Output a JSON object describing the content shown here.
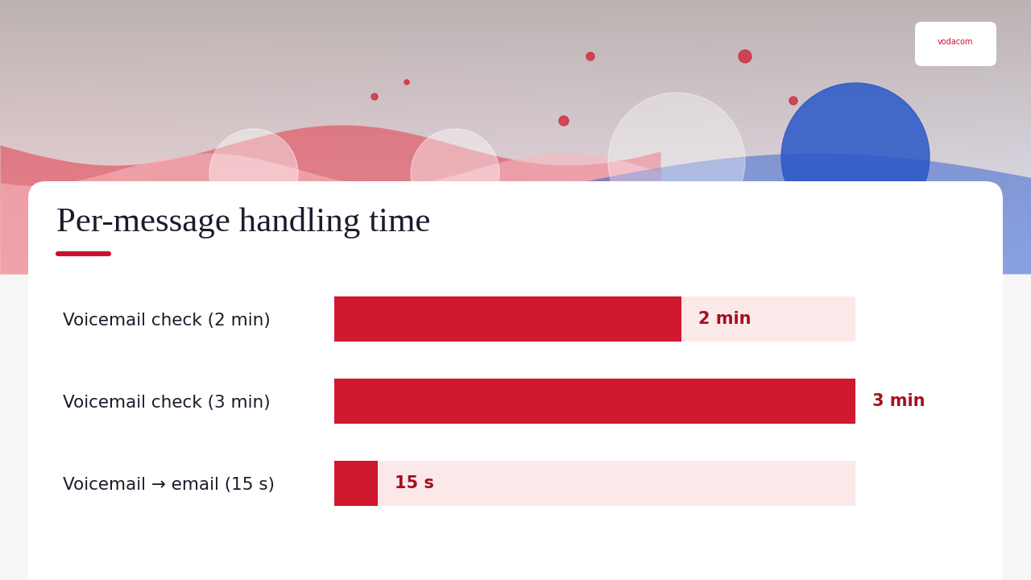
{
  "chart_data": {
    "type": "bar",
    "orientation": "horizontal",
    "title": "Per-message handling time",
    "categories": [
      "Voicemail check (2 min)",
      "Voicemail check (3 min)",
      "Voicemail → email (15 s)"
    ],
    "values": [
      2,
      3,
      0.25
    ],
    "value_labels": [
      "2 min",
      "3 min",
      "15 s"
    ],
    "data_labels": true,
    "xlim": [
      0,
      3
    ],
    "tick_labels": "y",
    "grid": false,
    "color": "#d0182f",
    "logo_text": "vodacom"
  }
}
